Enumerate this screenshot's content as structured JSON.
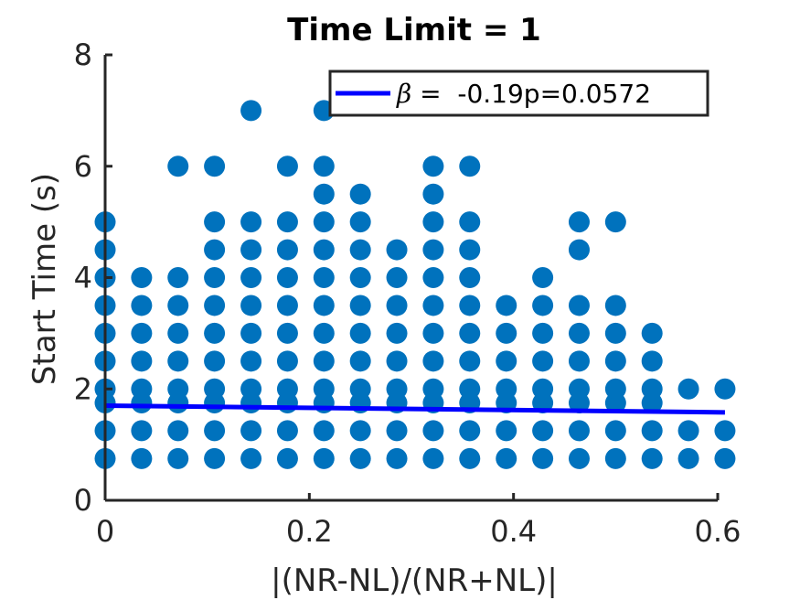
{
  "chart_data": {
    "type": "scatter",
    "title": "Time Limit =  1",
    "xlabel": "|(NR-NL)/(NR+NL)|",
    "ylabel": "Start Time (s)",
    "xlim": [
      0,
      0.6
    ],
    "ylim": [
      0,
      8
    ],
    "xticks": [
      0,
      0.2,
      0.4,
      0.6
    ],
    "xtick_labels": [
      "0",
      "0.2",
      "0.4",
      "0.6"
    ],
    "yticks": [
      0,
      2,
      4,
      6,
      8
    ],
    "ytick_labels": [
      "0",
      "2",
      "4",
      "6",
      "8"
    ],
    "grid": false,
    "legend_position": "top-right",
    "legend": {
      "symbol": "β",
      "text": " =  -0.19p=0.0572"
    },
    "colors": {
      "points": "#0072BD",
      "fit_line": "#0000FF",
      "axes": "#262626"
    },
    "columns": [
      {
        "x": 0.0,
        "y": [
          0.75,
          1.25,
          1.75,
          2.0,
          2.5,
          3.0,
          3.5,
          4.0,
          4.5,
          5.0
        ]
      },
      {
        "x": 0.0357,
        "y": [
          0.75,
          1.25,
          1.75,
          2.0,
          2.5,
          3.0,
          3.5,
          4.0
        ]
      },
      {
        "x": 0.0714,
        "y": [
          0.75,
          1.25,
          1.75,
          2.0,
          2.5,
          3.0,
          3.5,
          4.0,
          6.0
        ]
      },
      {
        "x": 0.1071,
        "y": [
          0.75,
          1.25,
          1.75,
          2.0,
          2.5,
          3.0,
          3.5,
          4.0,
          4.5,
          5.0,
          6.0
        ]
      },
      {
        "x": 0.1429,
        "y": [
          0.75,
          1.25,
          1.75,
          2.0,
          2.5,
          3.0,
          3.5,
          4.0,
          4.5,
          5.0,
          7.0
        ]
      },
      {
        "x": 0.1786,
        "y": [
          0.75,
          1.25,
          1.75,
          2.0,
          2.5,
          3.0,
          3.5,
          4.0,
          4.5,
          5.0,
          6.0
        ]
      },
      {
        "x": 0.2143,
        "y": [
          0.75,
          1.25,
          1.75,
          2.0,
          2.5,
          3.0,
          3.5,
          4.0,
          4.5,
          5.0,
          5.5,
          6.0,
          7.0
        ]
      },
      {
        "x": 0.25,
        "y": [
          0.75,
          1.25,
          1.75,
          2.0,
          2.5,
          3.0,
          3.5,
          4.0,
          4.5,
          5.0,
          5.5
        ]
      },
      {
        "x": 0.2857,
        "y": [
          0.75,
          1.25,
          1.75,
          2.0,
          2.5,
          3.0,
          3.5,
          4.0,
          4.5
        ]
      },
      {
        "x": 0.3214,
        "y": [
          0.75,
          1.25,
          1.75,
          2.0,
          2.5,
          3.0,
          3.5,
          4.0,
          4.5,
          5.0,
          5.5,
          6.0
        ]
      },
      {
        "x": 0.3571,
        "y": [
          0.75,
          1.25,
          1.75,
          2.0,
          2.5,
          3.0,
          3.5,
          4.0,
          4.5,
          5.0,
          6.0
        ]
      },
      {
        "x": 0.3929,
        "y": [
          0.75,
          1.25,
          1.75,
          2.0,
          2.5,
          3.0,
          3.5
        ]
      },
      {
        "x": 0.4286,
        "y": [
          0.75,
          1.25,
          1.75,
          2.0,
          2.5,
          3.0,
          3.5,
          4.0
        ]
      },
      {
        "x": 0.4643,
        "y": [
          0.75,
          1.25,
          1.75,
          2.0,
          2.5,
          3.0,
          3.5,
          4.5,
          5.0
        ]
      },
      {
        "x": 0.5,
        "y": [
          0.75,
          1.25,
          1.75,
          2.0,
          2.5,
          3.0,
          3.5,
          5.0
        ]
      },
      {
        "x": 0.5357,
        "y": [
          0.75,
          1.25,
          1.75,
          2.0,
          2.5,
          3.0
        ]
      },
      {
        "x": 0.5714,
        "y": [
          0.75,
          1.25,
          2.0
        ]
      },
      {
        "x": 0.6071,
        "y": [
          0.75,
          1.25,
          2.0
        ]
      }
    ],
    "fit_line": {
      "x": [
        0.0,
        0.6071
      ],
      "y": [
        1.7,
        1.58
      ]
    }
  }
}
